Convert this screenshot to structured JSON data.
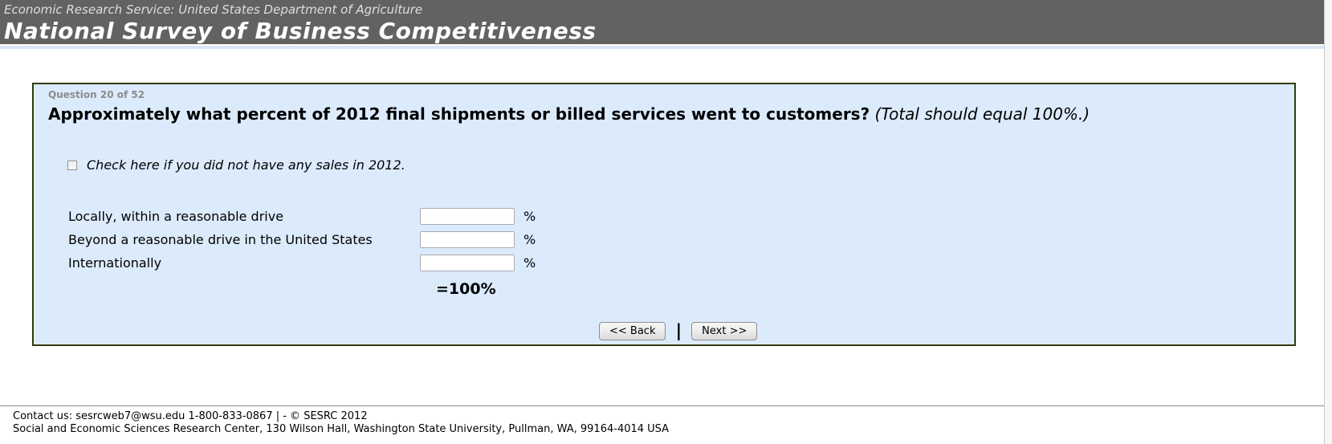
{
  "header": {
    "agency_line": "Economic Research Service: United States Department of Agriculture",
    "title": "National Survey of Business Competitiveness"
  },
  "question": {
    "progress": "Question 20 of 52",
    "text_bold": "Approximately what percent of 2012 final shipments or billed services went to customers?",
    "text_note": "(Total should equal 100%.)",
    "checkbox_label": "Check here if you did not have any sales in 2012.",
    "rows": [
      {
        "label": "Locally, within a reasonable drive",
        "value": "",
        "suffix": "%"
      },
      {
        "label": "Beyond a reasonable drive in the United States",
        "value": "",
        "suffix": "%"
      },
      {
        "label": "Internationally",
        "value": "",
        "suffix": "%"
      }
    ],
    "total_label": "=100%"
  },
  "buttons": {
    "back_label": "<< Back",
    "separator": "|",
    "next_label": "Next >>"
  },
  "footer": {
    "line1": "Contact us: sesrcweb7@wsu.edu 1-800-833-0867 | - © SESRC 2012",
    "line2": "Social and Economic Sciences Research Center, 130 Wilson Hall, Washington State University, Pullman, WA, 99164-4014 USA"
  },
  "colors": {
    "header_bg": "#626262",
    "header_title": "#ffffff",
    "accent_stripe": "#d8e6f6",
    "panel_bg": "#dcebfc",
    "panel_border": "#313b0d",
    "question_number": "#8b8b8b"
  }
}
